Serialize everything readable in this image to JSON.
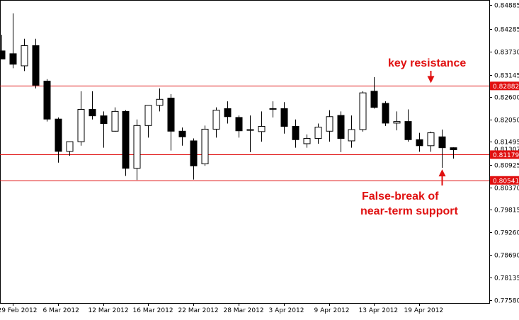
{
  "chart_data": {
    "type": "candlestick",
    "title": "",
    "xlabel": "",
    "ylabel": "",
    "ylim": [
      0.7758,
      0.8488
    ],
    "grid": false,
    "y_ticks": [
      "0.84885",
      "0.84285",
      "0.83730",
      "0.83145",
      "0.82600",
      "0.82050",
      "0.81495",
      "0.80925",
      "0.80370",
      "0.79815",
      "0.79260",
      "0.78690",
      "0.78135",
      "0.77580"
    ],
    "y_tick_values": [
      0.84885,
      0.84285,
      0.8373,
      0.83145,
      0.826,
      0.8205,
      0.81495,
      0.80925,
      0.8037,
      0.79815,
      0.7926,
      0.7869,
      0.78135,
      0.7758
    ],
    "x_labels": [
      {
        "label": "29 Feb 2012",
        "index": 1
      },
      {
        "label": "6 Mar 2012",
        "index": 5
      },
      {
        "label": "12 Mar 2012",
        "index": 9
      },
      {
        "label": "16 Mar 2012",
        "index": 13
      },
      {
        "label": "22 Mar 2012",
        "index": 17
      },
      {
        "label": "28 Mar 2012",
        "index": 21
      },
      {
        "label": "3 Apr 2012",
        "index": 25
      },
      {
        "label": "9 Apr 2012",
        "index": 29
      },
      {
        "label": "13 Apr 2012",
        "index": 33
      },
      {
        "label": "19 Apr 2012",
        "index": 37
      }
    ],
    "candles": [
      {
        "o": 0.8375,
        "h": 0.8415,
        "l": 0.8355,
        "c": 0.8355
      },
      {
        "o": 0.8368,
        "h": 0.8468,
        "l": 0.8332,
        "c": 0.8342
      },
      {
        "o": 0.8338,
        "h": 0.8405,
        "l": 0.8325,
        "c": 0.8388
      },
      {
        "o": 0.8388,
        "h": 0.8405,
        "l": 0.8282,
        "c": 0.829
      },
      {
        "o": 0.83,
        "h": 0.8305,
        "l": 0.82,
        "c": 0.8206
      },
      {
        "o": 0.8206,
        "h": 0.821,
        "l": 0.8098,
        "c": 0.8126
      },
      {
        "o": 0.8126,
        "h": 0.815,
        "l": 0.8115,
        "c": 0.815
      },
      {
        "o": 0.815,
        "h": 0.8275,
        "l": 0.814,
        "c": 0.823
      },
      {
        "o": 0.823,
        "h": 0.8275,
        "l": 0.8205,
        "c": 0.8214
      },
      {
        "o": 0.8214,
        "h": 0.8225,
        "l": 0.8135,
        "c": 0.8195
      },
      {
        "o": 0.8176,
        "h": 0.8235,
        "l": 0.8175,
        "c": 0.8225
      },
      {
        "o": 0.8225,
        "h": 0.8228,
        "l": 0.8065,
        "c": 0.8084
      },
      {
        "o": 0.8084,
        "h": 0.8205,
        "l": 0.8055,
        "c": 0.819
      },
      {
        "o": 0.819,
        "h": 0.824,
        "l": 0.816,
        "c": 0.824
      },
      {
        "o": 0.824,
        "h": 0.8282,
        "l": 0.8225,
        "c": 0.8255
      },
      {
        "o": 0.8258,
        "h": 0.8268,
        "l": 0.8128,
        "c": 0.8176
      },
      {
        "o": 0.8176,
        "h": 0.8185,
        "l": 0.814,
        "c": 0.8162
      },
      {
        "o": 0.8152,
        "h": 0.8158,
        "l": 0.8056,
        "c": 0.809
      },
      {
        "o": 0.8095,
        "h": 0.819,
        "l": 0.809,
        "c": 0.8181
      },
      {
        "o": 0.8181,
        "h": 0.8235,
        "l": 0.816,
        "c": 0.8228
      },
      {
        "o": 0.8232,
        "h": 0.825,
        "l": 0.8195,
        "c": 0.8212
      },
      {
        "o": 0.821,
        "h": 0.8215,
        "l": 0.816,
        "c": 0.8177
      },
      {
        "o": 0.8178,
        "h": 0.8215,
        "l": 0.8124,
        "c": 0.818
      },
      {
        "o": 0.8175,
        "h": 0.8225,
        "l": 0.815,
        "c": 0.8188
      },
      {
        "o": 0.8232,
        "h": 0.825,
        "l": 0.821,
        "c": 0.8232
      },
      {
        "o": 0.8232,
        "h": 0.8248,
        "l": 0.817,
        "c": 0.8188
      },
      {
        "o": 0.8188,
        "h": 0.8205,
        "l": 0.8135,
        "c": 0.8155
      },
      {
        "o": 0.8145,
        "h": 0.8168,
        "l": 0.8135,
        "c": 0.8158
      },
      {
        "o": 0.8158,
        "h": 0.8195,
        "l": 0.8145,
        "c": 0.8186
      },
      {
        "o": 0.8176,
        "h": 0.8228,
        "l": 0.815,
        "c": 0.8212
      },
      {
        "o": 0.8215,
        "h": 0.8225,
        "l": 0.8124,
        "c": 0.8158
      },
      {
        "o": 0.8152,
        "h": 0.8215,
        "l": 0.8135,
        "c": 0.818
      },
      {
        "o": 0.818,
        "h": 0.8275,
        "l": 0.8175,
        "c": 0.8271
      },
      {
        "o": 0.8275,
        "h": 0.831,
        "l": 0.8232,
        "c": 0.8235
      },
      {
        "o": 0.8245,
        "h": 0.825,
        "l": 0.8189,
        "c": 0.8196
      },
      {
        "o": 0.8196,
        "h": 0.8225,
        "l": 0.8178,
        "c": 0.82
      },
      {
        "o": 0.82,
        "h": 0.823,
        "l": 0.815,
        "c": 0.8155
      },
      {
        "o": 0.8155,
        "h": 0.8172,
        "l": 0.8125,
        "c": 0.814
      },
      {
        "o": 0.814,
        "h": 0.8175,
        "l": 0.8125,
        "c": 0.8172
      },
      {
        "o": 0.8162,
        "h": 0.818,
        "l": 0.8085,
        "c": 0.8135
      },
      {
        "o": 0.8135,
        "h": 0.8136,
        "l": 0.8108,
        "c": 0.813
      }
    ],
    "price_labels": [
      {
        "label": "0.82882",
        "value": 0.82882,
        "boxed": true
      },
      {
        "label": "0.81307",
        "value": 0.81307,
        "boxed": false
      },
      {
        "label": "0.81179",
        "value": 0.81179,
        "boxed": true
      },
      {
        "label": "0.80541",
        "value": 0.80541,
        "boxed": true
      }
    ],
    "horizontal_lines": [
      {
        "value": 0.82882,
        "color": "#e01010"
      },
      {
        "value": 0.81179,
        "color": "#e01010"
      },
      {
        "value": 0.80541,
        "color": "#e01010"
      }
    ],
    "annotations": [
      {
        "text": "key resistance",
        "arrow_target_index": 38,
        "arrow_target_value": 0.82882
      },
      {
        "text": "False-break of",
        "arrow_target_index": 39,
        "arrow_target_value": 0.8085
      },
      {
        "text": "near-term support"
      }
    ],
    "colors": {
      "bull_fill": "#ffffff",
      "bear_fill": "#000000",
      "line": "#e01010",
      "annotation": "#e01010",
      "axis": "#000000"
    }
  }
}
